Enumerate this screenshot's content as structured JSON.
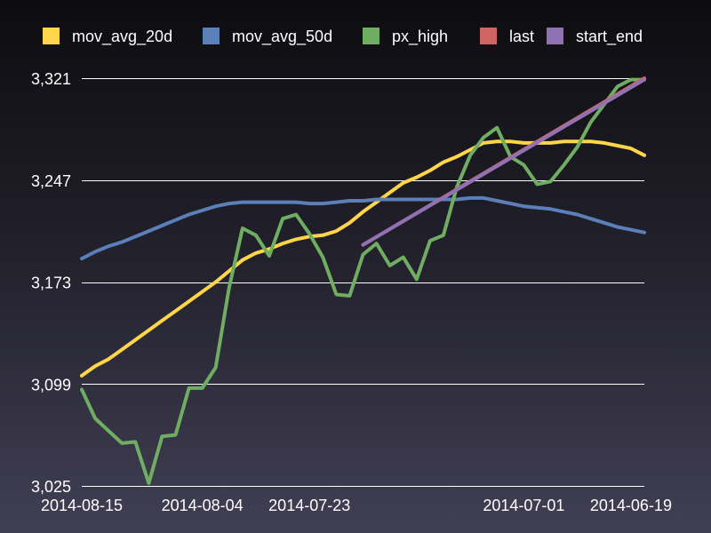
{
  "chart_data": {
    "type": "line",
    "title": "",
    "xlabel": "",
    "ylabel": "",
    "ylim": [
      3025,
      3321
    ],
    "yticks": [
      "3,025",
      "3,099",
      "3,173",
      "3,247",
      "3,321"
    ],
    "ytick_values": [
      3025,
      3099,
      3173,
      3247,
      3321
    ],
    "grid": true,
    "legend_position": "top",
    "x_tick_labels": [
      {
        "label": "2014-08-15",
        "index": 0
      },
      {
        "label": "2014-08-04",
        "index": 9
      },
      {
        "label": "2014-07-23",
        "index": 17
      },
      {
        "label": "2014-07-01",
        "index": 33
      },
      {
        "label": "2014-06-19",
        "index": 41
      }
    ],
    "series": [
      {
        "name": "mov_avg_20d",
        "color": "#ffd64a",
        "values": [
          3105,
          3112,
          3117,
          3124,
          3131,
          3138,
          3145,
          3152,
          3159,
          3166,
          3173,
          3181,
          3189,
          3194,
          3197,
          3201,
          3204,
          3206,
          3207,
          3210,
          3216,
          3224,
          3231,
          3238,
          3245,
          3249,
          3254,
          3260,
          3264,
          3269,
          3274,
          3275,
          3275,
          3274,
          3274,
          3274,
          3275,
          3275,
          3275,
          3274,
          3272,
          3270,
          3265
        ]
      },
      {
        "name": "mov_avg_50d",
        "color": "#5a7fb9",
        "values": [
          3190,
          3195,
          3199,
          3202,
          3206,
          3210,
          3214,
          3218,
          3222,
          3225,
          3228,
          3230,
          3231,
          3231,
          3231,
          3231,
          3231,
          3230,
          3230,
          3231,
          3232,
          3232,
          3233,
          3233,
          3233,
          3233,
          3233,
          3233,
          3233,
          3234,
          3234,
          3232,
          3230,
          3228,
          3227,
          3226,
          3224,
          3222,
          3219,
          3216,
          3213,
          3211,
          3209
        ]
      },
      {
        "name": "px_high",
        "color": "#6fad63",
        "values": [
          3095,
          3074,
          3065,
          3056,
          3057,
          3027,
          3061,
          3062,
          3096,
          3096,
          3111,
          3169,
          3212,
          3207,
          3192,
          3219,
          3222,
          3208,
          3191,
          3164,
          3163,
          3193,
          3201,
          3185,
          3191,
          3175,
          3203,
          3207,
          3242,
          3265,
          3278,
          3285,
          3264,
          3258,
          3244,
          3246,
          3258,
          3271,
          3289,
          3302,
          3315,
          3320,
          3320
        ]
      },
      {
        "name": "last",
        "color": "#cf6562",
        "points": [
          [
            21,
            3200
          ],
          [
            42,
            3321
          ]
        ]
      },
      {
        "name": "start_end",
        "color": "#8f71b4",
        "points": [
          [
            21,
            3200
          ],
          [
            42,
            3320
          ]
        ]
      }
    ]
  }
}
